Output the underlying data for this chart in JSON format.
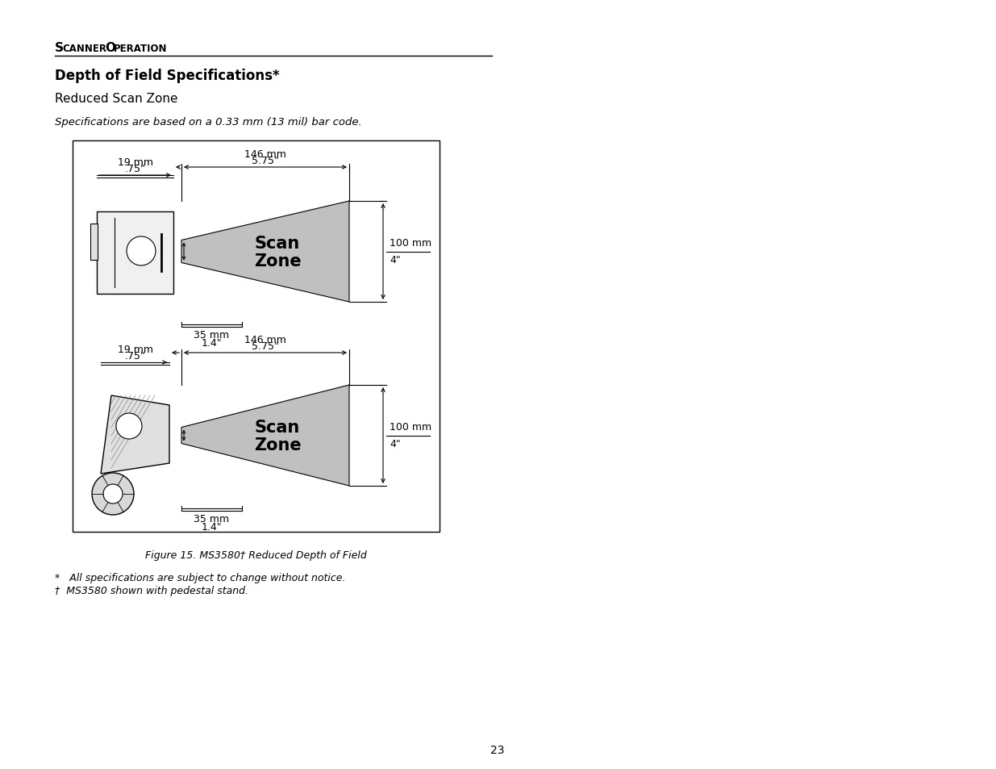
{
  "page_title": "Scanner Operation",
  "section_title": "Depth of Field Specifications*",
  "subsection": "Reduced Scan Zone",
  "spec_note": "Specifications are based on a 0.33 mm (13 mil) bar code.",
  "figure_caption": "Figure 15. MS3580† Reduced Depth of Field",
  "footnote1": "*   All specifications are subject to change without notice.",
  "footnote2": "†  MS3580 shown with pedestal stand.",
  "page_number": "23",
  "scan_zone_color": "#c0c0c0",
  "dim_146mm": "146 mm",
  "dim_575in": "5.75\"",
  "dim_19mm": "19 mm",
  "dim_75in": ".75\"",
  "dim_100mm": "100 mm",
  "dim_4in": "4\"",
  "dim_35mm": "35 mm",
  "dim_14in": "1.4\"",
  "scan_zone_label1": "Scan",
  "scan_zone_label2": "Zone"
}
